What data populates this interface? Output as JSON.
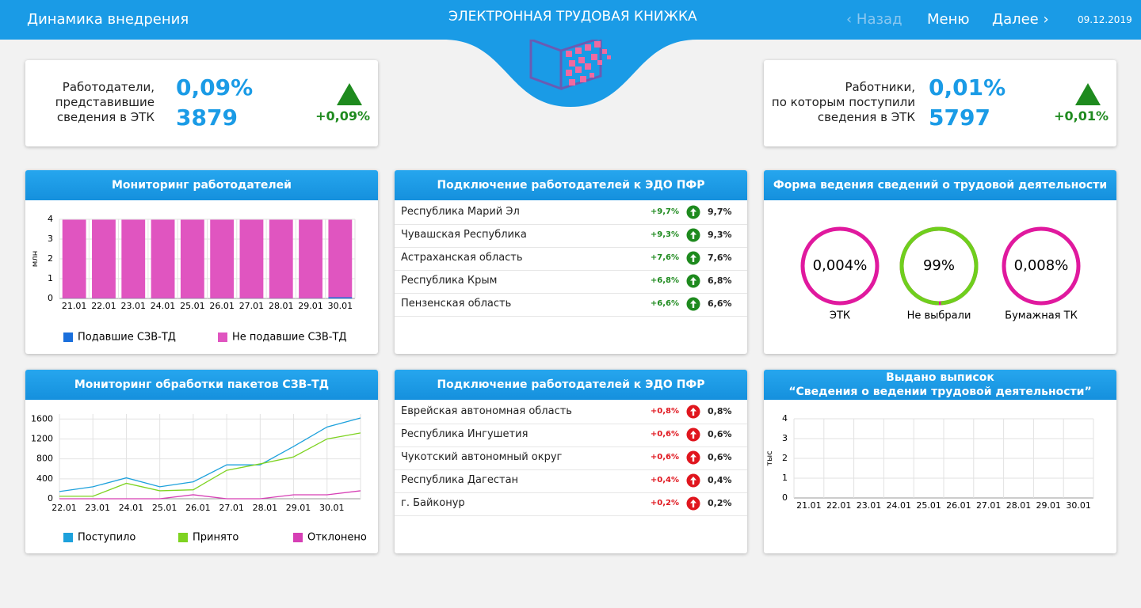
{
  "header": {
    "section": "Динамика внедрения",
    "title": "ЭЛЕКТРОННАЯ ТРУДОВАЯ КНИЖКА",
    "back": "Назад",
    "menu": "Меню",
    "next": "Далее",
    "date": "09.12.2019"
  },
  "kpis": [
    {
      "label": [
        "Работодатели,",
        "представившие",
        "сведения в ЭТК"
      ],
      "percent": "0,09%",
      "count": "3879",
      "change": "+0,09%"
    },
    {
      "label": [
        "Работники,",
        "по которым поступили",
        "сведения в ЭТК"
      ],
      "percent": "0,01%",
      "count": "5797",
      "change": "+0,01%"
    }
  ],
  "panels": [
    {
      "type": "bar",
      "title": [
        "Мониторинг работодателей"
      ],
      "ylabel": "млн",
      "grid": true,
      "categories": [
        "21.01",
        "22.01",
        "23.01",
        "24.01",
        "25.01",
        "26.01",
        "27.01",
        "28.01",
        "29.01",
        "30.01"
      ],
      "series": [
        {
          "name": "Подавшие СЗВ-ТД",
          "color": "#1a6fdc",
          "values": [
            0.01,
            0.01,
            0.01,
            0.01,
            0.01,
            0.01,
            0.01,
            0.01,
            0.01,
            0.06
          ]
        },
        {
          "name": "Не подавшие СЗВ-ТД",
          "color": "#e055c0",
          "values": [
            3.97,
            3.97,
            3.97,
            3.97,
            3.97,
            3.97,
            3.97,
            3.97,
            3.97,
            3.92
          ]
        }
      ],
      "ylim": [
        0,
        4
      ],
      "yticks": [
        0,
        1,
        2,
        3,
        4
      ]
    },
    {
      "type": "table",
      "title": [
        "Подключение работодателей к ЭДО ПФР"
      ],
      "trend_color": "#1e8a1e",
      "rows": [
        [
          "Республика Марий Эл",
          "+9,7%",
          "9,7%"
        ],
        [
          "Чувашская Республика",
          "+9,3%",
          "9,3%"
        ],
        [
          "Астраханская область",
          "+7,6%",
          "7,6%"
        ],
        [
          "Республика Крым",
          "+6,8%",
          "6,8%"
        ],
        [
          "Пензенская область",
          "+6,6%",
          "6,6%"
        ]
      ]
    },
    {
      "type": "donut",
      "title": [
        "Форма ведения сведений о трудовой деятельности"
      ],
      "color": "#6fcf1d",
      "track_color": "#e0199e",
      "categories": [
        "ЭТК",
        "Не выбрали",
        "Бумажная ТК"
      ],
      "values": [
        0.004,
        99,
        0.008
      ],
      "value_labels": [
        "0,004%",
        "99%",
        "0,008%"
      ]
    },
    {
      "type": "line",
      "title": [
        "Мониторинг обработки пакетов СЗВ-ТД"
      ],
      "grid": true,
      "categories": [
        "22.01",
        "23.01",
        "24.01",
        "25.01",
        "26.01",
        "27.01",
        "28.01",
        "29.01",
        "30.01",
        null
      ],
      "series": [
        {
          "name": "Поступило",
          "color": "#1da1dc",
          "values": [
            145,
            240,
            420,
            240,
            340,
            680,
            680,
            1050,
            1440,
            1620
          ]
        },
        {
          "name": "Принято",
          "color": "#7ed321",
          "values": [
            50,
            50,
            310,
            160,
            180,
            570,
            700,
            840,
            1200,
            1320
          ]
        },
        {
          "name": "Отклонено",
          "color": "#d63fb5",
          "values": [
            0,
            0,
            0,
            0,
            80,
            0,
            0,
            80,
            80,
            160
          ]
        }
      ],
      "ylim": [
        0,
        1700
      ],
      "yticks": [
        0,
        400,
        800,
        1200,
        1600
      ]
    },
    {
      "type": "table",
      "title": [
        "Подключение работодателей к ЭДО ПФР"
      ],
      "trend_color": "#e0161e",
      "rows": [
        [
          "Еврейская автономная область",
          "+0,8%",
          "0,8%"
        ],
        [
          "Республика Ингушетия",
          "+0,6%",
          "0,6%"
        ],
        [
          "Чукотский автономный округ",
          "+0,6%",
          "0,6%"
        ],
        [
          "Республика Дагестан",
          "+0,4%",
          "0,4%"
        ],
        [
          "г. Байконур",
          "+0,2%",
          "0,2%"
        ]
      ]
    },
    {
      "type": "bar",
      "title": [
        "Выдано выписок",
        "“Сведения о ведении трудовой деятельности”"
      ],
      "ylabel": "тыс",
      "grid": true,
      "categories": [
        "21.01",
        "22.01",
        "23.01",
        "24.01",
        "25.01",
        "26.01",
        "27.01",
        "28.01",
        "29.01",
        "30.01"
      ],
      "series": [],
      "ylim": [
        0,
        4
      ],
      "yticks": [
        0,
        1,
        2,
        3,
        4
      ]
    }
  ]
}
